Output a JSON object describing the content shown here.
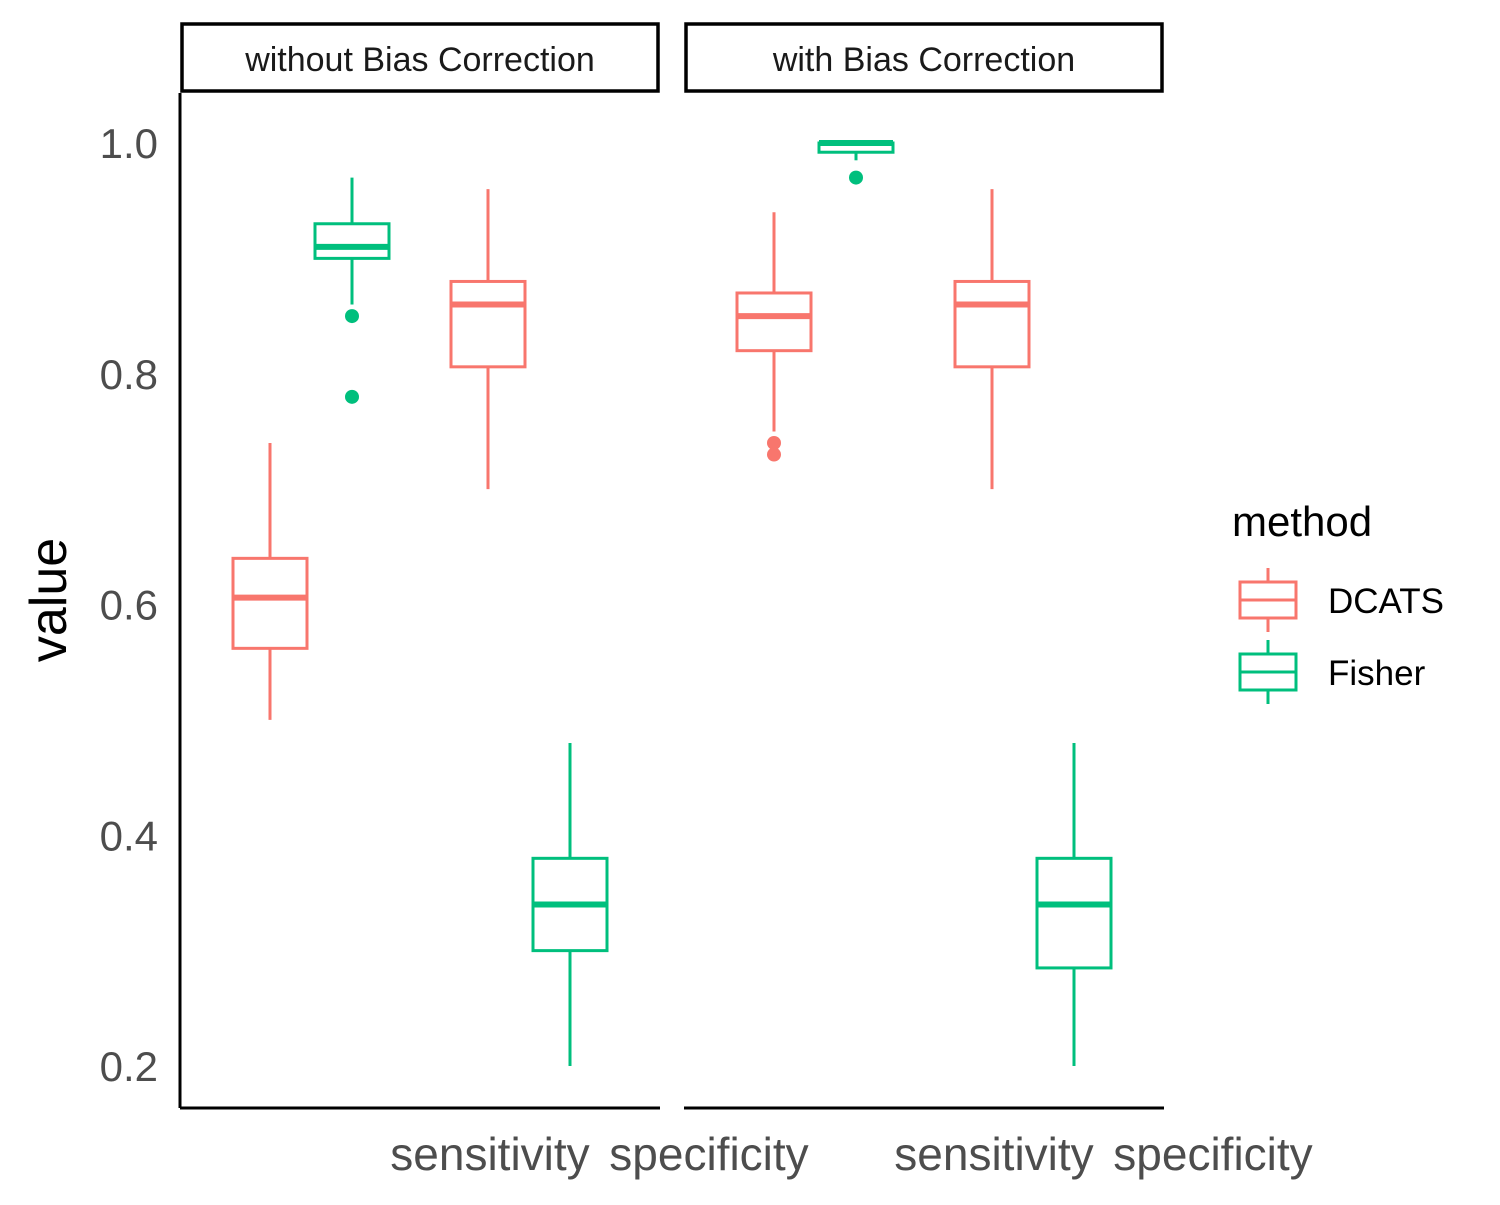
{
  "chart_data": {
    "type": "boxplot",
    "ylabel": "value",
    "xlabel": "",
    "ylim": [
      0.18,
      1.04
    ],
    "yticks": [
      "0.2",
      "0.4",
      "0.6",
      "0.8",
      "1.0"
    ],
    "categories": [
      "sensitivity",
      "specificity"
    ],
    "legend": {
      "title": "method",
      "position": "right",
      "entries": [
        {
          "name": "DCATS",
          "color": "#F8766D"
        },
        {
          "name": "Fisher",
          "color": "#00BF7D"
        }
      ]
    },
    "panels": [
      {
        "title": "without Bias Correction",
        "boxes": [
          {
            "category": "sensitivity",
            "method": "DCATS",
            "whisker_low": 0.5,
            "q1": 0.562,
            "median": 0.606,
            "q3": 0.64,
            "whisker_high": 0.74,
            "outliers": []
          },
          {
            "category": "sensitivity",
            "method": "Fisher",
            "whisker_low": 0.86,
            "q1": 0.9,
            "median": 0.91,
            "q3": 0.93,
            "whisker_high": 0.97,
            "outliers": [
              0.85,
              0.78
            ]
          },
          {
            "category": "specificity",
            "method": "DCATS",
            "whisker_low": 0.7,
            "q1": 0.806,
            "median": 0.86,
            "q3": 0.88,
            "whisker_high": 0.96,
            "outliers": []
          },
          {
            "category": "specificity",
            "method": "Fisher",
            "whisker_low": 0.2,
            "q1": 0.3,
            "median": 0.34,
            "q3": 0.38,
            "whisker_high": 0.48,
            "outliers": []
          }
        ]
      },
      {
        "title": "with Bias Correction",
        "boxes": [
          {
            "category": "sensitivity",
            "method": "DCATS",
            "whisker_low": 0.75,
            "q1": 0.82,
            "median": 0.85,
            "q3": 0.87,
            "whisker_high": 0.94,
            "outliers": [
              0.74,
              0.73
            ]
          },
          {
            "category": "sensitivity",
            "method": "Fisher",
            "whisker_low": 0.985,
            "q1": 0.992,
            "median": 1.0,
            "q3": 1.0,
            "whisker_high": 1.0,
            "outliers": [
              0.97
            ]
          },
          {
            "category": "specificity",
            "method": "DCATS",
            "whisker_low": 0.7,
            "q1": 0.806,
            "median": 0.86,
            "q3": 0.88,
            "whisker_high": 0.96,
            "outliers": []
          },
          {
            "category": "specificity",
            "method": "Fisher",
            "whisker_low": 0.2,
            "q1": 0.285,
            "median": 0.34,
            "q3": 0.38,
            "whisker_high": 0.48,
            "outliers": []
          }
        ]
      }
    ]
  }
}
